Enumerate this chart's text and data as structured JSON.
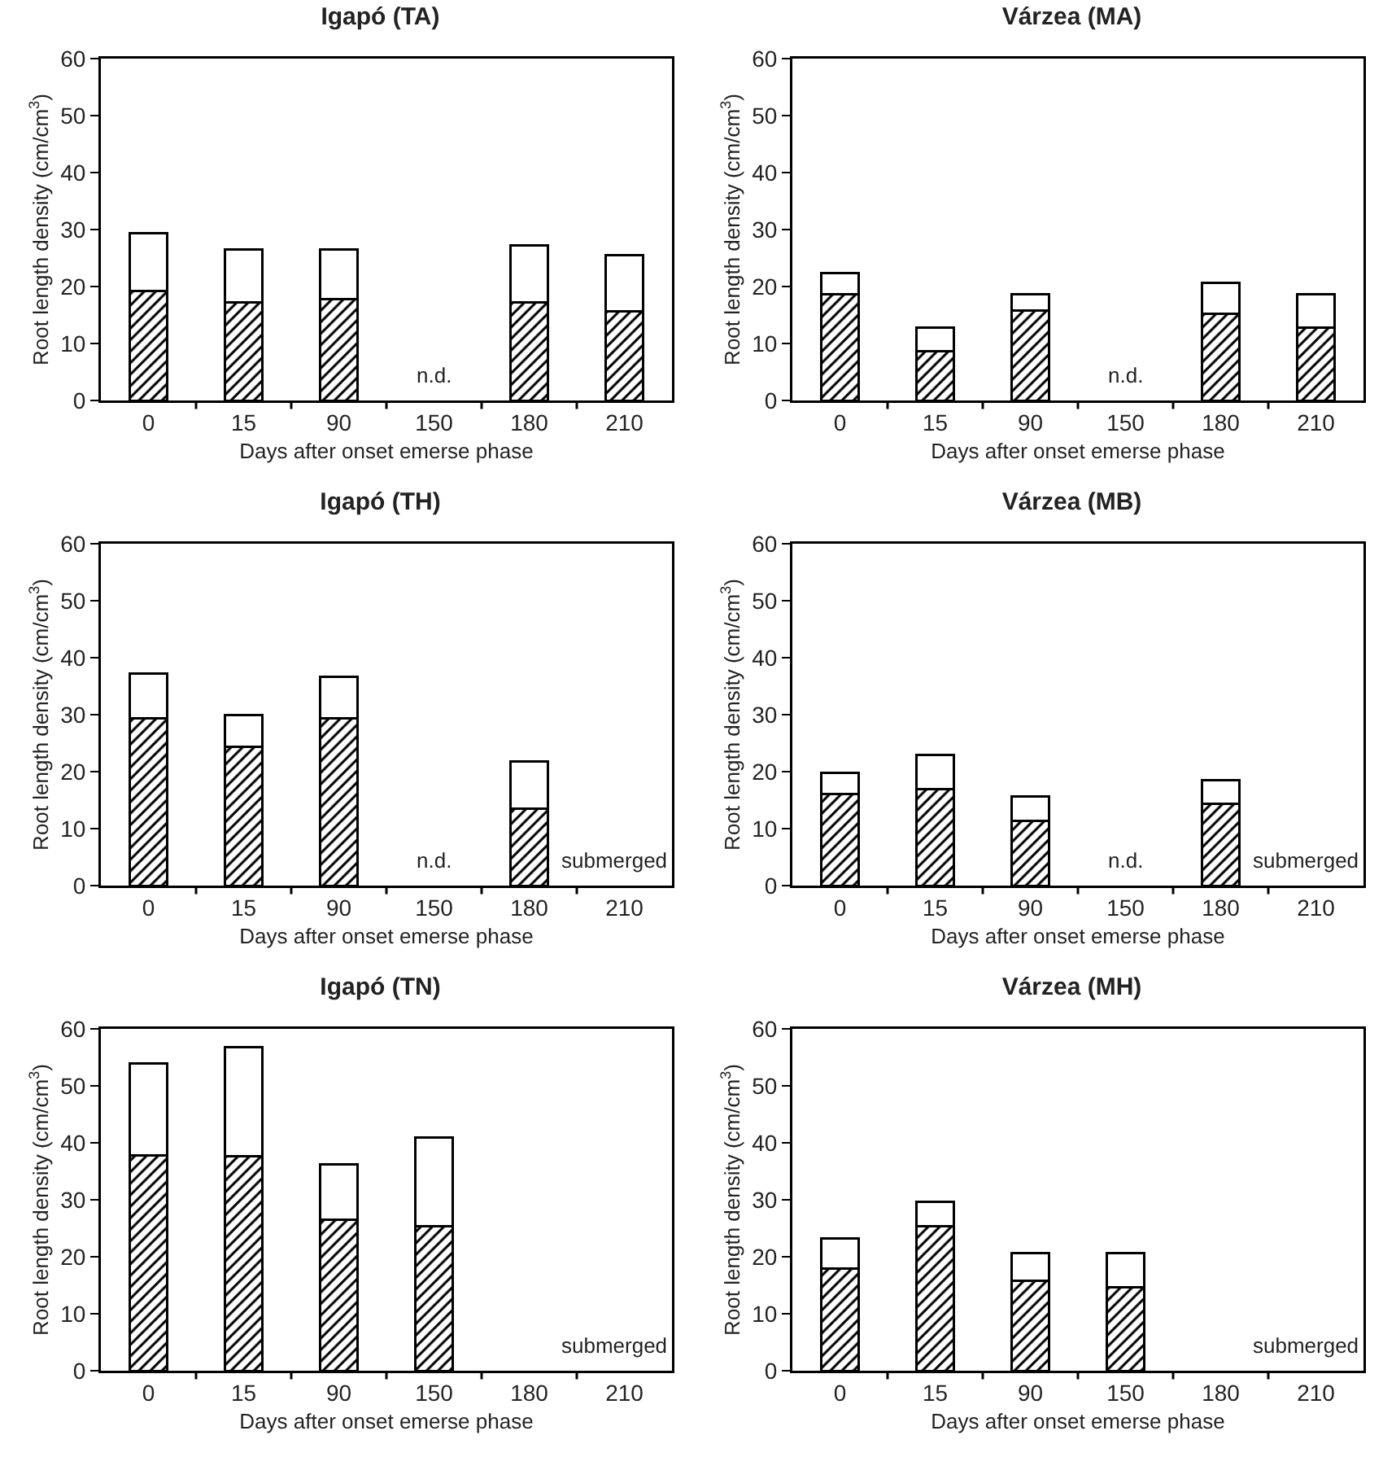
{
  "chart_data": [
    {
      "type": "bar",
      "title": "Igapó (TA)",
      "xlabel": "Days after onset emerse phase",
      "ylabel": "Root length density (cm/cm$^{3}$)",
      "categories": [
        "0",
        "15",
        "90",
        "150",
        "180",
        "210"
      ],
      "stacked": true,
      "grid": false,
      "ylim": [
        0,
        60
      ],
      "yticks": [
        0,
        10,
        20,
        30,
        40,
        50,
        60
      ],
      "series": [
        {
          "color": "#000000",
          "values": [
            19.2,
            17.2,
            17.8,
            null,
            17.2,
            15.7
          ]
        },
        {
          "color": "#ffffff",
          "values": [
            10.1,
            9.3,
            8.7,
            null,
            10.0,
            9.8
          ]
        }
      ],
      "annotations": [
        "n.d."
      ]
    },
    {
      "type": "bar",
      "title": "Várzea (MA)",
      "xlabel": "Days after onset emerse phase",
      "ylabel": "Root length density (cm/cm$^{3}$)",
      "categories": [
        "0",
        "15",
        "90",
        "150",
        "180",
        "210"
      ],
      "stacked": true,
      "grid": false,
      "ylim": [
        0,
        60
      ],
      "yticks": [
        0,
        10,
        20,
        30,
        40,
        50,
        60
      ],
      "series": [
        {
          "color": "#000000",
          "values": [
            18.6,
            8.6,
            15.8,
            null,
            15.2,
            12.8
          ]
        },
        {
          "color": "#ffffff",
          "values": [
            3.7,
            4.2,
            2.9,
            null,
            5.5,
            5.9
          ]
        }
      ],
      "annotations": [
        "n.d."
      ]
    },
    {
      "type": "bar",
      "title": "Igapó (TH)",
      "xlabel": "Days after onset emerse phase",
      "ylabel": "Root length density (cm/cm$^{3}$)",
      "categories": [
        "0",
        "15",
        "90",
        "150",
        "180",
        "210"
      ],
      "stacked": true,
      "grid": false,
      "ylim": [
        0,
        60
      ],
      "yticks": [
        0,
        10,
        20,
        30,
        40,
        50,
        60
      ],
      "series": [
        {
          "color": "#000000",
          "values": [
            29.3,
            24.4,
            29.3,
            null,
            13.5,
            null
          ]
        },
        {
          "color": "#ffffff",
          "values": [
            7.9,
            5.6,
            7.4,
            null,
            8.3,
            null
          ]
        }
      ],
      "annotations": [
        "n.d.",
        "submerged"
      ]
    },
    {
      "type": "bar",
      "title": "Várzea (MB)",
      "xlabel": "Days after onset emerse phase",
      "ylabel": "Root length density (cm/cm$^{3}$)",
      "categories": [
        "0",
        "15",
        "90",
        "150",
        "180",
        "210"
      ],
      "stacked": true,
      "grid": false,
      "ylim": [
        0,
        60
      ],
      "yticks": [
        0,
        10,
        20,
        30,
        40,
        50,
        60
      ],
      "series": [
        {
          "color": "#000000",
          "values": [
            16.1,
            17.0,
            11.3,
            null,
            14.3,
            null
          ]
        },
        {
          "color": "#ffffff",
          "values": [
            3.7,
            5.9,
            4.4,
            null,
            4.2,
            null
          ]
        }
      ],
      "annotations": [
        "n.d.",
        "submerged"
      ]
    },
    {
      "type": "bar",
      "title": "Igapó (TN)",
      "xlabel": "Days after onset emerse phase",
      "ylabel": "Root length density (cm/cm$^{3}$)",
      "categories": [
        "0",
        "15",
        "90",
        "150",
        "180",
        "210"
      ],
      "stacked": true,
      "grid": false,
      "ylim": [
        0,
        60
      ],
      "yticks": [
        0,
        10,
        20,
        30,
        40,
        50,
        60
      ],
      "series": [
        {
          "color": "#000000",
          "values": [
            37.8,
            37.6,
            26.5,
            25.4,
            null,
            null
          ]
        },
        {
          "color": "#ffffff",
          "values": [
            16.2,
            19.2,
            9.7,
            15.6,
            null,
            null
          ]
        }
      ],
      "annotations": [
        "submerged"
      ]
    },
    {
      "type": "bar",
      "title": "Várzea (MH)",
      "xlabel": "Days after onset emerse phase",
      "ylabel": "Root length density (cm/cm$^{3}$)",
      "categories": [
        "0",
        "15",
        "90",
        "150",
        "180",
        "210"
      ],
      "stacked": true,
      "grid": false,
      "ylim": [
        0,
        60
      ],
      "yticks": [
        0,
        10,
        20,
        30,
        40,
        50,
        60
      ],
      "series": [
        {
          "color": "#000000",
          "values": [
            18.0,
            25.4,
            15.8,
            14.6,
            null,
            null
          ]
        },
        {
          "color": "#ffffff",
          "values": [
            5.2,
            4.2,
            4.8,
            6.0,
            null,
            null
          ]
        }
      ],
      "annotations": [
        "submerged"
      ]
    }
  ]
}
